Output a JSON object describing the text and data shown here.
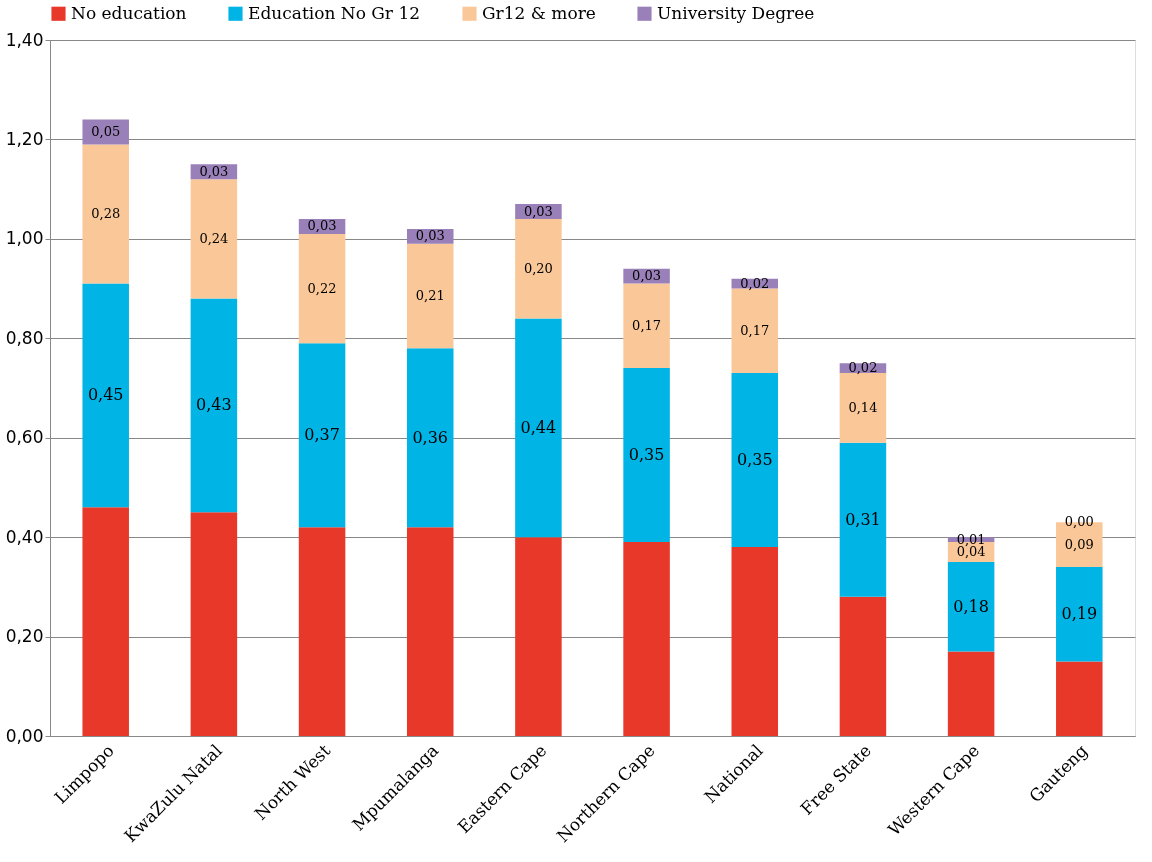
{
  "chart_data": {
    "type": "bar",
    "stacked": true,
    "categories": [
      "Limpopo",
      "KwaZulu Natal",
      "North West",
      "Mpumalanga",
      "Eastern Cape",
      "Northern Cape",
      "National",
      "Free State",
      "Western Cape",
      "Gauteng"
    ],
    "series": [
      {
        "name": "No education",
        "color": "#e8382a",
        "values": [
          0.46,
          0.45,
          0.42,
          0.42,
          0.4,
          0.39,
          0.38,
          0.28,
          0.17,
          0.15
        ],
        "value_labels": [
          null,
          null,
          null,
          null,
          null,
          null,
          null,
          null,
          null,
          null
        ]
      },
      {
        "name": "Education No Gr 12",
        "color": "#00b4e6",
        "values": [
          0.45,
          0.43,
          0.37,
          0.36,
          0.44,
          0.35,
          0.35,
          0.31,
          0.18,
          0.19
        ],
        "value_labels": [
          "0,45",
          "0,43",
          "0,37",
          "0,36",
          "0,44",
          "0,35",
          "0,35",
          "0,31",
          "0,18",
          "0,19"
        ]
      },
      {
        "name": "Gr12 & more",
        "color": "#fac898",
        "values": [
          0.28,
          0.24,
          0.22,
          0.21,
          0.2,
          0.17,
          0.17,
          0.14,
          0.04,
          0.09
        ],
        "value_labels": [
          "0,28",
          "0,24",
          "0,22",
          "0,21",
          "0,20",
          "0,17",
          "0,17",
          "0,14",
          "0,04",
          "0,09"
        ]
      },
      {
        "name": "University Degree",
        "color": "#9a80b8",
        "values": [
          0.05,
          0.03,
          0.03,
          0.03,
          0.03,
          0.03,
          0.02,
          0.02,
          0.01,
          0.0
        ],
        "value_labels": [
          "0,05",
          "0,03",
          "0,03",
          "0,03",
          "0,03",
          "0,03",
          "0,02",
          "0,02",
          "0,01",
          "0,00"
        ]
      }
    ],
    "ylim": [
      0,
      1.4
    ],
    "yticks": [
      {
        "value": 0,
        "label": "0,00"
      },
      {
        "value": 0.2,
        "label": "0,20"
      },
      {
        "value": 0.4,
        "label": "0,40"
      },
      {
        "value": 0.6,
        "label": "0,60"
      },
      {
        "value": 0.8,
        "label": "0,80"
      },
      {
        "value": 1.0,
        "label": "1,00"
      },
      {
        "value": 1.2,
        "label": "1,20"
      },
      {
        "value": 1.4,
        "label": "1,40"
      }
    ],
    "grid": "y",
    "legend": "top"
  }
}
